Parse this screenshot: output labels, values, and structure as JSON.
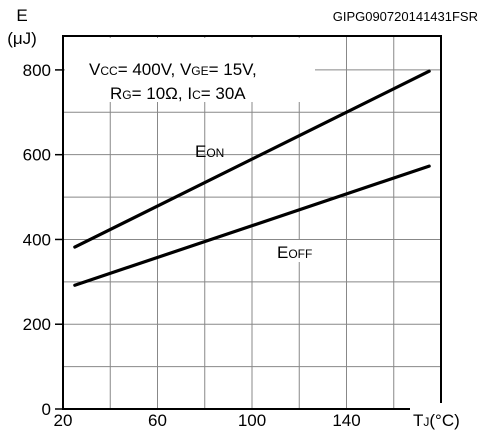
{
  "doc_id": "GIPG090720141431FSR",
  "chart_data": {
    "type": "line",
    "ylabel": {
      "symbol": "E",
      "unit": "(μJ)"
    },
    "xlabel": {
      "main": "T",
      "sub": "J",
      "unit": "(°C)"
    },
    "xlim": [
      20,
      180
    ],
    "ylim": [
      0,
      880
    ],
    "x_ticks": [
      20,
      60,
      100,
      140
    ],
    "y_ticks": [
      0,
      200,
      400,
      600,
      800
    ],
    "grid": true,
    "conditions": [
      [
        {
          "t": "V",
          "s": "CC",
          "v": "= 400V, "
        },
        {
          "t": "V",
          "s": "GE",
          "v": "= 15V,"
        }
      ],
      [
        {
          "t": "R",
          "s": "G",
          "v": "= 10Ω, "
        },
        {
          "t": "I",
          "s": "C",
          "v": "= 30A"
        }
      ]
    ],
    "series": [
      {
        "name": "EON",
        "label_main": "E",
        "label_sub": "ON",
        "x": [
          25,
          175
        ],
        "y": [
          382,
          797
        ]
      },
      {
        "name": "EOFF",
        "label_main": "E",
        "label_sub": "OFF",
        "x": [
          25,
          175
        ],
        "y": [
          292,
          573
        ]
      }
    ]
  }
}
